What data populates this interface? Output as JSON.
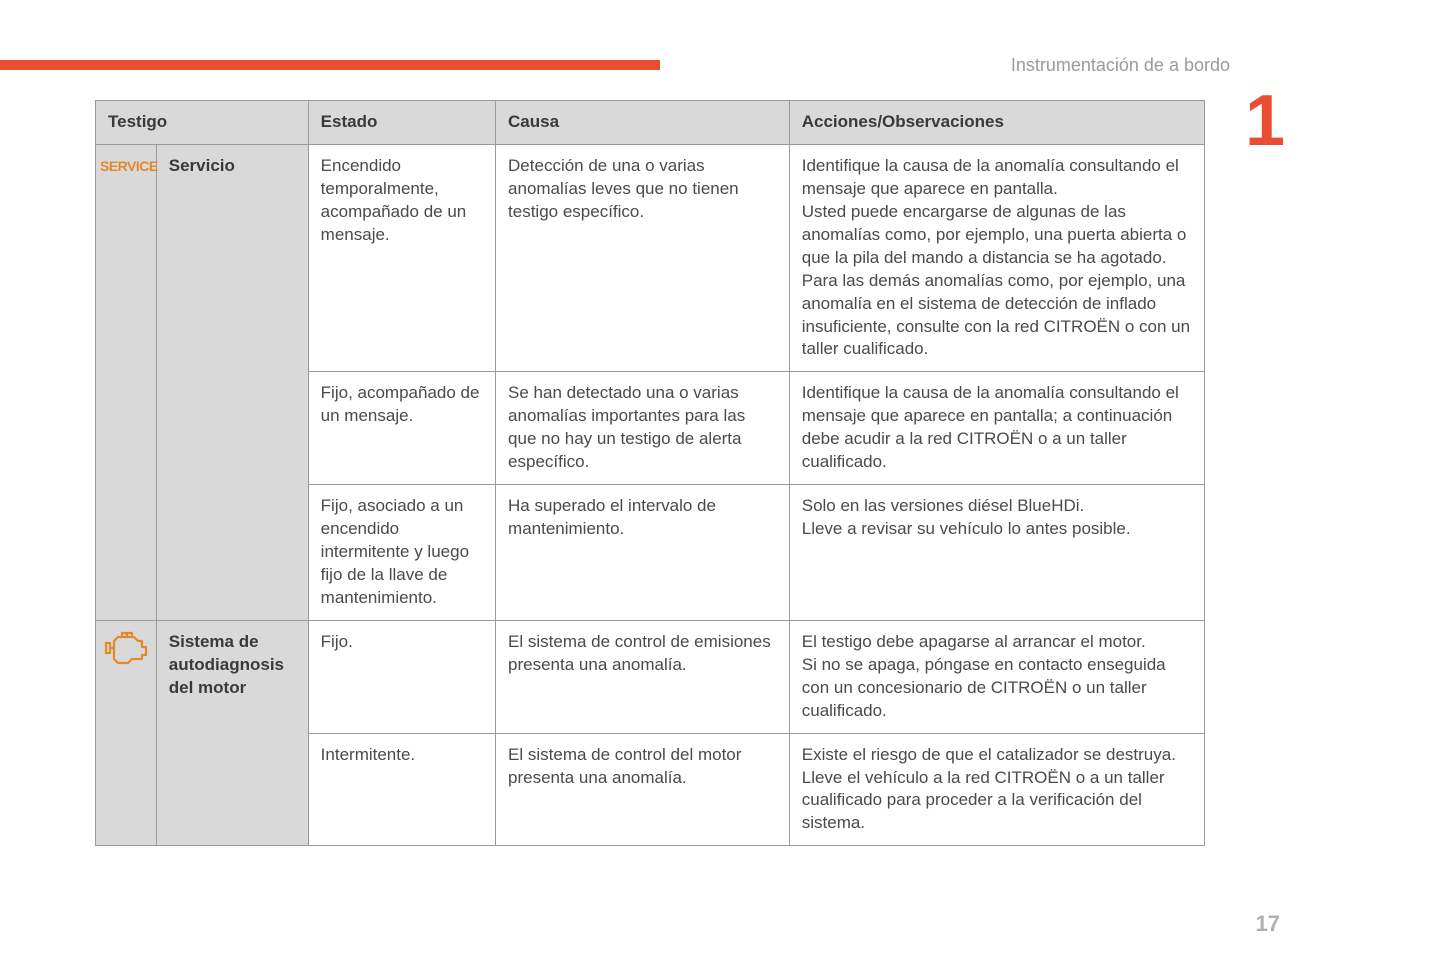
{
  "header": {
    "section_title": "Instrumentación de a bordo",
    "chapter_number": "1",
    "page_number": "17"
  },
  "colors": {
    "accent": "#e94e34",
    "icon_orange": "#e08a2a",
    "header_bg": "#d9d9d9",
    "border": "#9a9a9a",
    "text": "#4a4a4a",
    "muted": "#9a9a9a",
    "page_num": "#b0b0b0"
  },
  "table": {
    "columns": [
      "Testigo",
      "Estado",
      "Causa",
      "Acciones/Observaciones"
    ],
    "groups": [
      {
        "icon": "service",
        "name": "Servicio",
        "rows": [
          {
            "estado": "Encendido temporalmente, acompañado de un mensaje.",
            "causa": "Detección de una o varias anomalías leves que no tienen testigo específico.",
            "accion": "Identifique la causa de la anomalía consultando el mensaje que aparece en pantalla.\nUsted puede encargarse de algunas de las anomalías como, por ejemplo, una puerta abierta o que la pila del mando a distancia se ha agotado.\nPara las demás anomalías como, por ejemplo, una anomalía en el sistema de detección de inflado insuficiente, consulte con la red CITROËN o con un taller cualificado."
          },
          {
            "estado": "Fijo, acompañado de un mensaje.",
            "causa": "Se han detectado una o varias anomalías importantes para las que no hay un testigo de alerta específico.",
            "accion": "Identifique la causa de la anomalía consultando el mensaje que aparece en pantalla; a continuación debe acudir a la red CITROËN o a un taller cualificado."
          },
          {
            "estado": "Fijo, asociado a un encendido intermitente y luego fijo de la llave de mantenimiento.",
            "causa": "Ha superado el intervalo de mantenimiento.",
            "accion": "Solo en las versiones diésel BlueHDi.\nLleve a revisar su vehículo lo antes posible."
          }
        ]
      },
      {
        "icon": "engine",
        "name": "Sistema de autodiagnosis del motor",
        "rows": [
          {
            "estado": "Fijo.",
            "causa": "El sistema de control de emisiones presenta una anomalía.",
            "accion": "El testigo debe apagarse al arrancar el motor.\nSi no se apaga, póngase en contacto enseguida con un concesionario de CITROËN o un taller cualificado."
          },
          {
            "estado": "Intermitente.",
            "causa": "El sistema de control del motor presenta una anomalía.",
            "accion": "Existe el riesgo de que el catalizador se destruya.\nLleve el vehículo a la red CITROËN o a un taller cualificado para proceder a la verificación del sistema."
          }
        ]
      }
    ]
  }
}
